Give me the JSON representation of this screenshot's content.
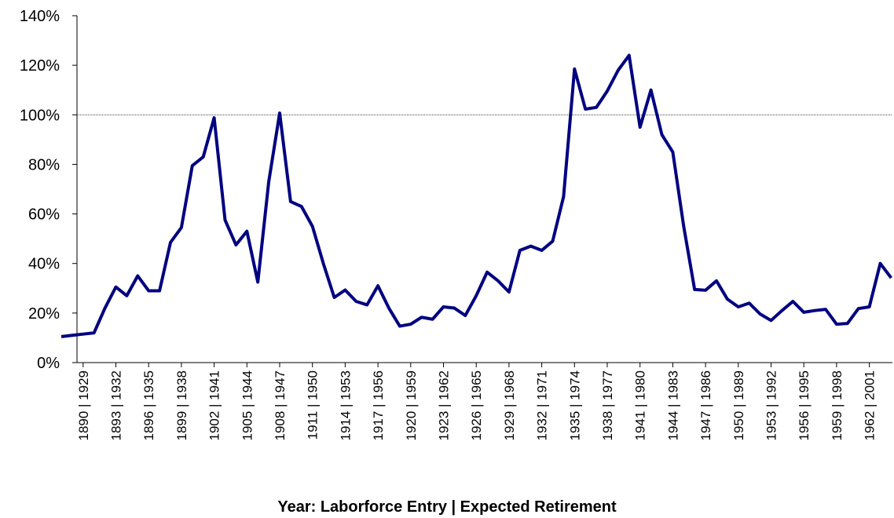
{
  "chart_data": {
    "type": "line",
    "x_label": "Year: Laborforce Entry | Expected Retirement",
    "categories": [
      null,
      null,
      "1890 | 1929",
      null,
      null,
      "1893 | 1932",
      null,
      null,
      "1896 | 1935",
      null,
      null,
      "1899 | 1938",
      null,
      null,
      "1902 | 1941",
      null,
      null,
      "1905 | 1944",
      null,
      null,
      "1908 | 1947",
      null,
      null,
      "1911 | 1950",
      null,
      null,
      "1914 | 1953",
      null,
      null,
      "1917 | 1956",
      null,
      null,
      "1920 | 1959",
      null,
      null,
      "1923 | 1962",
      null,
      null,
      "1926 | 1965",
      null,
      null,
      "1929 | 1968",
      null,
      null,
      "1932 | 1971",
      null,
      null,
      "1935 | 1974",
      null,
      null,
      "1938 | 1977",
      null,
      null,
      "1941 | 1980",
      null,
      null,
      "1944 | 1983",
      null,
      null,
      "1947 | 1986",
      null,
      null,
      "1950 | 1989",
      null,
      null,
      "1953 | 1992",
      null,
      null,
      "1956 | 1995",
      null,
      null,
      "1959 | 1998",
      null,
      null,
      "1962 | 2001",
      null,
      null
    ],
    "values": [
      10.5,
      11,
      11.5,
      12,
      22,
      30.5,
      27,
      35,
      29,
      29,
      48.5,
      54.5,
      79.5,
      83,
      98.8,
      57.5,
      47.5,
      53,
      32.5,
      73,
      100.7,
      65,
      63,
      55,
      40,
      26.3,
      29.3,
      24.7,
      23.3,
      31,
      22,
      14.7,
      15.5,
      18.3,
      17.5,
      22.5,
      22,
      19,
      27,
      36.5,
      33,
      28.5,
      45.3,
      47,
      45.3,
      49,
      67,
      118.5,
      102.3,
      103,
      109.6,
      118,
      124,
      95,
      110,
      92,
      85,
      55,
      29.5,
      29.2,
      33,
      25.6,
      22.5,
      24,
      19.6,
      17,
      21,
      24.7,
      20.3,
      21,
      21.5,
      15.5,
      15.8,
      21.8,
      22.5,
      40,
      34.2
    ],
    "color": "#000080",
    "reference_line": 100,
    "ylim": [
      0,
      140
    ],
    "yticks": [
      {
        "value": 0,
        "label": "0%"
      },
      {
        "value": 20,
        "label": "20%"
      },
      {
        "value": 40,
        "label": "40%"
      },
      {
        "value": 60,
        "label": "60%"
      },
      {
        "value": 80,
        "label": "80%"
      },
      {
        "value": 100,
        "label": "100%"
      },
      {
        "value": 120,
        "label": "120%"
      },
      {
        "value": 140,
        "label": "140%"
      }
    ]
  }
}
